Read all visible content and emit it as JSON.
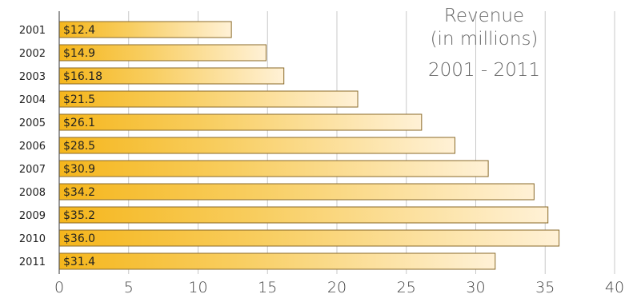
{
  "chart_data": {
    "type": "bar",
    "orientation": "horizontal",
    "title_lines": [
      "Revenue",
      "(in millions)"
    ],
    "subtitle": "2001 - 2011",
    "categories": [
      "2001",
      "2002",
      "2003",
      "2004",
      "2005",
      "2006",
      "2007",
      "2008",
      "2009",
      "2010",
      "2011"
    ],
    "values": [
      12.4,
      14.9,
      16.18,
      21.5,
      26.1,
      28.5,
      30.9,
      34.2,
      35.2,
      36.0,
      31.4
    ],
    "value_labels": [
      "$12.4",
      "$14.9",
      "$16.18",
      "$21.5",
      "$26.1",
      "$28.5",
      "$30.9",
      "$34.2",
      "$35.2",
      "$36.0",
      "$31.4"
    ],
    "x_ticks": [
      "0",
      "5",
      "10",
      "15",
      "20",
      "25",
      "30",
      "35",
      "40"
    ],
    "xlim": [
      0,
      40
    ],
    "grid": true,
    "bar_gradient": [
      "#f5b61c",
      "#fff1d6"
    ],
    "bar_border": "#8a6a2a"
  }
}
